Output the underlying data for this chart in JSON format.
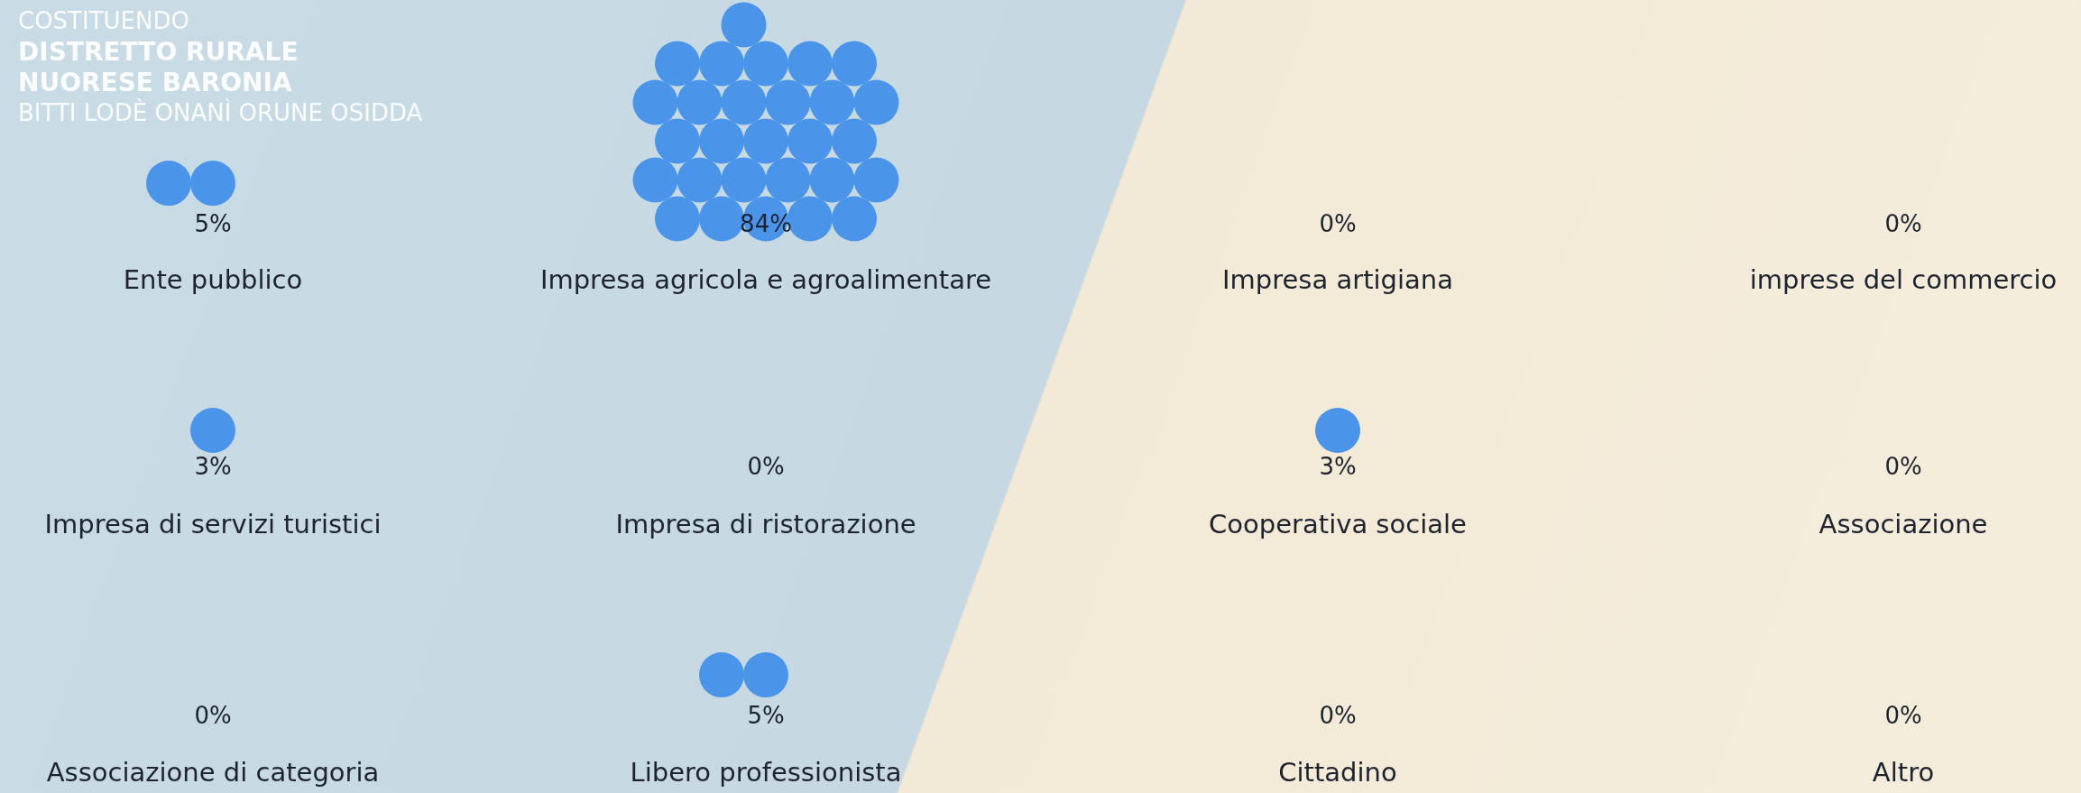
{
  "chart_data": {
    "type": "other",
    "categories": [
      "Ente pubblico",
      "Impresa agricola e agroalimentare",
      "Impresa artigiana",
      "imprese del commercio",
      "Impresa di servizi turistici",
      "Impresa di ristorazione",
      "Cooperativa sociale",
      "Associazione",
      "Associazione di categoria",
      "Libero professionista",
      "Cittadino",
      "Altro"
    ],
    "values": [
      5,
      84,
      0,
      0,
      3,
      0,
      3,
      0,
      0,
      5,
      0,
      0
    ],
    "value_labels": [
      "5%",
      "84%",
      "0%",
      "0%",
      "3%",
      "0%",
      "3%",
      "0%",
      "0%",
      "5%",
      "0%",
      "0%"
    ],
    "color": "#4a94ea",
    "annotations": [
      "COSTITUENDO",
      "DISTRETTO RURALE",
      "NUORESE BARONIA",
      "BITTI LODÈ ONANÌ ORUNE OSIDDA"
    ]
  }
}
